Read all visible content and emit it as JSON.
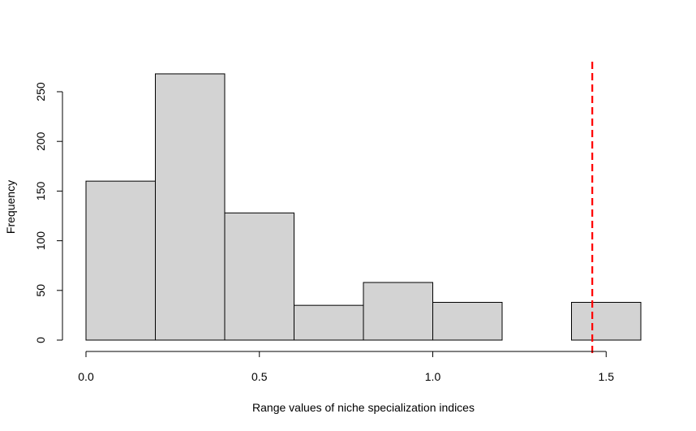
{
  "chart_data": {
    "type": "bar",
    "title": "",
    "xlabel": "Range values of niche specialization indices",
    "ylabel": "Frequency",
    "bins": [
      {
        "x0": 0.0,
        "x1": 0.2,
        "count": 160
      },
      {
        "x0": 0.2,
        "x1": 0.4,
        "count": 268
      },
      {
        "x0": 0.4,
        "x1": 0.6,
        "count": 128
      },
      {
        "x0": 0.6,
        "x1": 0.8,
        "count": 35
      },
      {
        "x0": 0.8,
        "x1": 1.0,
        "count": 58
      },
      {
        "x0": 1.0,
        "x1": 1.2,
        "count": 38
      },
      {
        "x0": 1.2,
        "x1": 1.4,
        "count": 0
      },
      {
        "x0": 1.4,
        "x1": 1.6,
        "count": 38
      }
    ],
    "xlim": [
      0,
      1.6
    ],
    "ylim": [
      0,
      268
    ],
    "xticks": [
      0.0,
      0.5,
      1.0,
      1.5
    ],
    "xtick_labels": [
      "0.0",
      "0.5",
      "1.0",
      "1.5"
    ],
    "yticks": [
      0,
      50,
      100,
      150,
      200,
      250
    ],
    "ytick_labels": [
      "0",
      "50",
      "100",
      "150",
      "200",
      "250"
    ],
    "reference_line": {
      "x": 1.46,
      "color": "#ff0000",
      "style": "dashed"
    },
    "bar_fill": "#d3d3d3",
    "bar_stroke": "#000000",
    "grid": false,
    "legend": "none"
  }
}
